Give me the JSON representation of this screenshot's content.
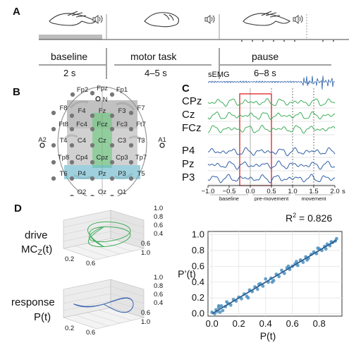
{
  "panels": {
    "a": "A",
    "b": "B",
    "c": "C",
    "d": "D"
  },
  "timeline": {
    "phases": [
      {
        "name": "baseline",
        "duration": "2 s"
      },
      {
        "name": "motor task",
        "duration": "4–5 s"
      },
      {
        "name": "pause",
        "duration": "6–8 s"
      }
    ],
    "icons": [
      "open-hand-icon",
      "speaker-icon",
      "fist-icon",
      "speaker-icon",
      "open-hand-icon",
      "speaker-icon"
    ]
  },
  "head": {
    "electrodes": [
      "Fp2",
      "Fpz",
      "Fp1",
      "N",
      "F8",
      "F4",
      "Fz",
      "F3",
      "F7",
      "Ft8",
      "Fc4",
      "Fcz",
      "Fc3",
      "Ft7",
      "A2",
      "T4",
      "C4",
      "Cz",
      "C3",
      "T3",
      "A1",
      "Tp8",
      "Cp4",
      "Cpz",
      "Cp3",
      "Tp7",
      "T6",
      "P4",
      "Pz",
      "P3",
      "T5",
      "O2",
      "Oz",
      "O1"
    ]
  },
  "eeg": {
    "semg_label": "sEMG",
    "channels": [
      "CPz",
      "Cz",
      "FCz",
      "P4",
      "Pz",
      "P3"
    ],
    "xticks": [
      "−1.0",
      "−0.5",
      "0.0",
      "0.5",
      "1.0",
      "1.5",
      "2.0"
    ],
    "xunit": "s",
    "phases": [
      "baseline",
      "pre-movement",
      "movement"
    ],
    "colors": {
      "green": "#3fae5a",
      "blue": "#2f5fa5",
      "semg": "#2b5fa8",
      "window": "#e02020"
    }
  },
  "panel_d": {
    "drive_label_1": "drive",
    "drive_label_2": "MC",
    "drive_sub": "Z",
    "drive_label_3": "(t)",
    "response_label_1": "response",
    "response_label_2": "P(t)",
    "cube_ticks_z": [
      "1.0",
      "0.8",
      "0.6",
      "0.4"
    ],
    "cube_ticks_y": [
      "0.6",
      "1.0"
    ],
    "cube_ticks_x": [
      "0.2",
      "0.6"
    ],
    "r2_label": "R",
    "r2_value": "= 0.826",
    "colors": {
      "green": "#3fae5a",
      "blue": "#3a66b0",
      "points": "#4a8fc0",
      "fit": "#2e5f8f"
    }
  },
  "chart_data": {
    "type": "scatter",
    "title": "",
    "annotations": [
      "R² = 0.826"
    ],
    "xlabel": "P(t)",
    "ylabel": "P’(t)",
    "xlim": [
      -0.03,
      0.97
    ],
    "ylim": [
      -0.03,
      1.04
    ],
    "xticks": [
      "0.0",
      "0.2",
      "0.4",
      "0.6",
      "0.8"
    ],
    "yticks": [
      "0.0",
      "0.2",
      "0.4",
      "0.6",
      "0.8",
      "1.0"
    ],
    "grid": true,
    "fit_line": {
      "x": [
        0.0,
        0.93
      ],
      "y": [
        0.0,
        0.93
      ]
    },
    "x": [
      0.0,
      0.02,
      0.03,
      0.04,
      0.05,
      0.06,
      0.07,
      0.08,
      0.1,
      0.12,
      0.14,
      0.16,
      0.18,
      0.2,
      0.22,
      0.24,
      0.26,
      0.28,
      0.3,
      0.32,
      0.34,
      0.36,
      0.38,
      0.4,
      0.42,
      0.44,
      0.46,
      0.48,
      0.5,
      0.52,
      0.54,
      0.56,
      0.58,
      0.6,
      0.62,
      0.64,
      0.66,
      0.68,
      0.7,
      0.72,
      0.74,
      0.76,
      0.78,
      0.8,
      0.82,
      0.84,
      0.86,
      0.88,
      0.9,
      0.92,
      0.93,
      0.05,
      0.11,
      0.27,
      0.35,
      0.45,
      0.57,
      0.63,
      0.71,
      0.79,
      0.85,
      0.89
    ],
    "y": [
      0.02,
      0.0,
      0.05,
      0.03,
      0.08,
      0.02,
      0.1,
      0.04,
      0.09,
      0.13,
      0.11,
      0.18,
      0.16,
      0.21,
      0.19,
      0.25,
      0.22,
      0.3,
      0.28,
      0.34,
      0.31,
      0.38,
      0.35,
      0.44,
      0.4,
      0.45,
      0.42,
      0.5,
      0.47,
      0.55,
      0.51,
      0.58,
      0.56,
      0.6,
      0.63,
      0.61,
      0.68,
      0.65,
      0.72,
      0.7,
      0.75,
      0.78,
      0.76,
      0.82,
      0.8,
      0.85,
      0.88,
      0.86,
      0.9,
      0.92,
      0.95,
      0.1,
      0.15,
      0.2,
      0.37,
      0.4,
      0.6,
      0.66,
      0.68,
      0.83,
      0.82,
      0.91
    ]
  }
}
